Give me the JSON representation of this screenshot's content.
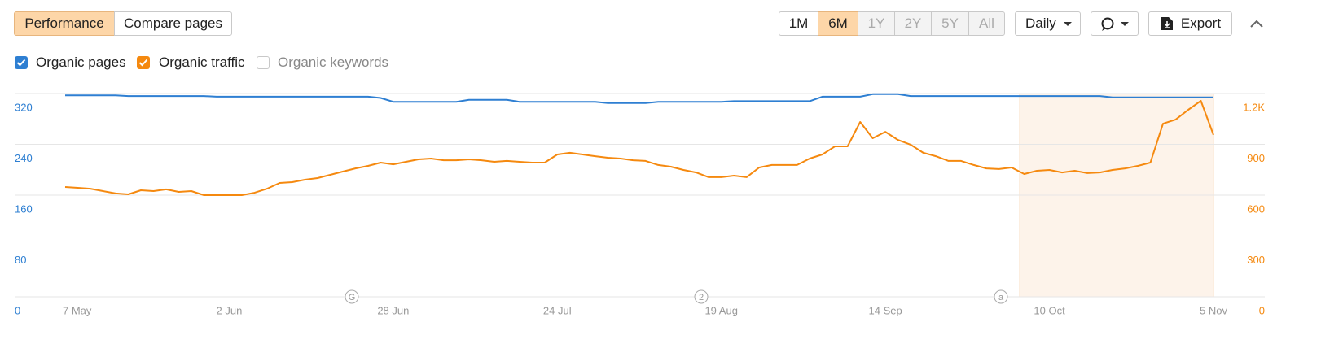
{
  "toolbar": {
    "tabs": [
      "Performance",
      "Compare pages"
    ],
    "ranges": [
      "1M",
      "6M",
      "1Y",
      "2Y",
      "5Y",
      "All"
    ],
    "interval": "Daily",
    "export": "Export"
  },
  "chart_data": {
    "type": "line",
    "categories": [
      "7 May",
      null,
      null,
      null,
      null,
      null,
      null,
      null,
      null,
      null,
      null,
      null,
      null,
      "2 Jun",
      null,
      null,
      null,
      null,
      null,
      null,
      null,
      null,
      null,
      null,
      null,
      null,
      "28 Jun",
      null,
      null,
      null,
      null,
      null,
      null,
      null,
      null,
      null,
      null,
      null,
      null,
      "24 Jul",
      null,
      null,
      null,
      null,
      null,
      null,
      null,
      null,
      null,
      null,
      null,
      null,
      "19 Aug",
      null,
      null,
      null,
      null,
      null,
      null,
      null,
      null,
      null,
      null,
      null,
      null,
      "14 Sep",
      null,
      null,
      null,
      null,
      null,
      null,
      null,
      null,
      null,
      null,
      null,
      null,
      "10 Oct",
      null,
      null,
      null,
      null,
      null,
      null,
      null,
      null,
      null,
      null,
      null,
      null,
      "5 Nov"
    ],
    "series": [
      {
        "name": "Organic pages",
        "color": "#2e7fd2",
        "axis": "y",
        "values": [
          317,
          317,
          317,
          317,
          317,
          316,
          316,
          316,
          316,
          316,
          316,
          316,
          315,
          315,
          315,
          315,
          315,
          315,
          315,
          315,
          315,
          315,
          315,
          315,
          315,
          313,
          307,
          307,
          307,
          307,
          307,
          307,
          310,
          310,
          310,
          310,
          307,
          307,
          307,
          307,
          307,
          307,
          307,
          305,
          305,
          305,
          305,
          307,
          307,
          307,
          307,
          307,
          307,
          308,
          308,
          308,
          308,
          308,
          308,
          308,
          315,
          315,
          315,
          315,
          319,
          319,
          319,
          316,
          316,
          316,
          316,
          316,
          316,
          316,
          316,
          316,
          316,
          316,
          316,
          316,
          316,
          316,
          316,
          314,
          314,
          314,
          314,
          314,
          314,
          314,
          314,
          314
        ]
      },
      {
        "name": "Organic traffic",
        "color": "#f5890f",
        "axis": "y2",
        "values": [
          648,
          643,
          638,
          624,
          610,
          605,
          629,
          624,
          634,
          619,
          624,
          600,
          600,
          600,
          600,
          614,
          638,
          672,
          677,
          691,
          701,
          720,
          739,
          758,
          773,
          792,
          782,
          797,
          811,
          816,
          806,
          806,
          811,
          806,
          797,
          802,
          797,
          792,
          792,
          840,
          850,
          840,
          830,
          821,
          816,
          806,
          802,
          778,
          768,
          749,
          734,
          706,
          706,
          715,
          706,
          763,
          778,
          778,
          778,
          816,
          840,
          888,
          888,
          1032,
          936,
          974,
          926,
          898,
          850,
          830,
          802,
          802,
          778,
          758,
          754,
          763,
          725,
          744,
          749,
          734,
          744,
          730,
          734,
          749,
          758,
          773,
          792,
          1022,
          1046,
          1104,
          1157,
          955
        ]
      }
    ],
    "legend_unchecked": "Organic keywords",
    "annotations": [
      "G",
      "2",
      "a"
    ],
    "ylim": [
      0,
      320
    ],
    "yticks": [
      0,
      80,
      160,
      240,
      320
    ],
    "y2lim": [
      0,
      1200
    ],
    "y2ticks": [
      0,
      300,
      600,
      900,
      {
        "value": 1200,
        "label": "1.2K"
      }
    ],
    "grid": true
  }
}
